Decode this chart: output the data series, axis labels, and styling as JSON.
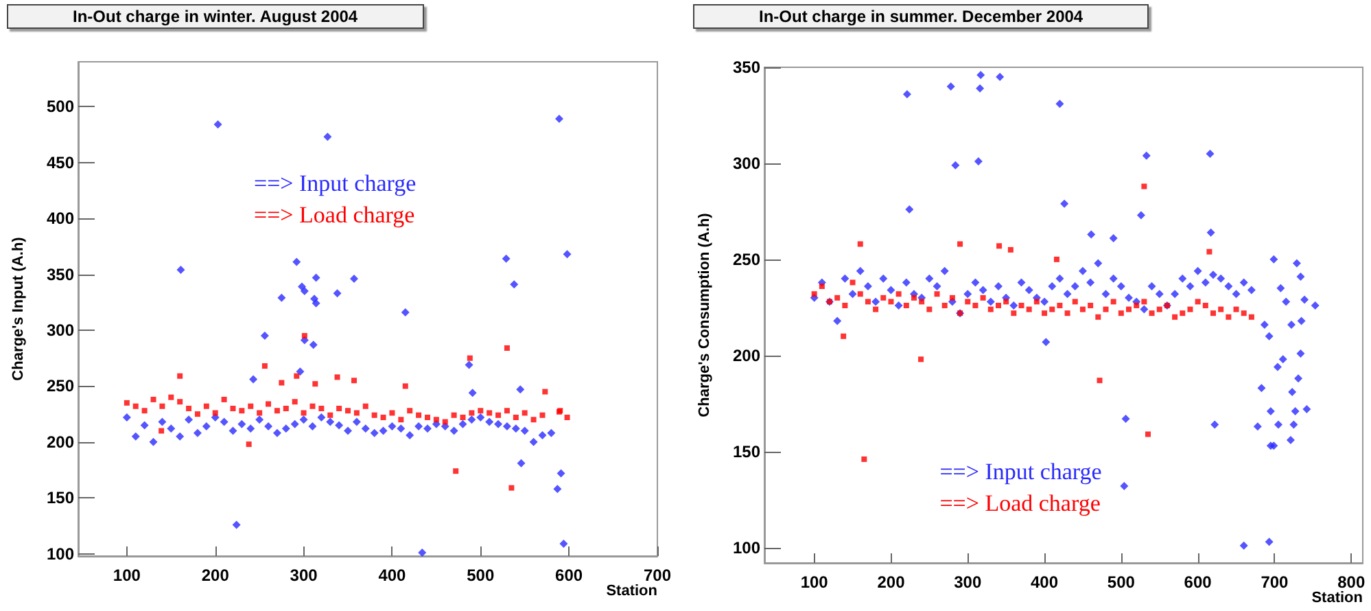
{
  "chart_data": [
    {
      "type": "scatter",
      "title": "In-Out charge in winter. August 2004",
      "xlabel": "Station",
      "ylabel": "Charge's Input (A.h)",
      "xlim": [
        45,
        700
      ],
      "ylim": [
        98,
        540
      ],
      "xticks": [
        100,
        200,
        300,
        400,
        500,
        600,
        700
      ],
      "yticks": [
        100,
        150,
        200,
        250,
        300,
        350,
        400,
        450,
        500
      ],
      "grid": false,
      "legend": "top",
      "series": [
        {
          "name": "==> Input charge",
          "color": "#2a2aff",
          "marker": "diamond",
          "x": [
            100,
            110,
            120,
            130,
            140,
            150,
            160,
            170,
            180,
            190,
            200,
            210,
            220,
            230,
            240,
            250,
            260,
            270,
            280,
            290,
            300,
            310,
            320,
            330,
            340,
            350,
            360,
            370,
            380,
            390,
            400,
            410,
            420,
            430,
            440,
            450,
            460,
            470,
            480,
            490,
            500,
            510,
            520,
            530,
            540,
            550,
            560,
            570,
            580,
            203,
            327,
            589,
            161,
            292,
            275,
            298,
            301,
            314,
            312,
            314,
            338,
            357,
            256,
            301,
            311,
            296,
            415,
            529,
            538,
            598,
            487,
            491,
            545,
            243,
            224,
            434,
            546,
            591,
            587,
            594
          ],
          "values": [
            222,
            205,
            215,
            200,
            218,
            212,
            205,
            220,
            208,
            214,
            222,
            218,
            210,
            216,
            212,
            220,
            214,
            208,
            212,
            216,
            220,
            214,
            222,
            218,
            215,
            210,
            218,
            212,
            208,
            210,
            214,
            212,
            206,
            214,
            212,
            216,
            214,
            210,
            216,
            220,
            222,
            218,
            216,
            214,
            212,
            210,
            200,
            206,
            208,
            484,
            473,
            489,
            354,
            361,
            329,
            339,
            335,
            347,
            328,
            324,
            333,
            346,
            295,
            291,
            287,
            263,
            316,
            364,
            341,
            368,
            269,
            244,
            247,
            256,
            126,
            101,
            181,
            172,
            158,
            109
          ]
        },
        {
          "name": "==> Load charge",
          "color": "#ff0000",
          "marker": "square",
          "x": [
            100,
            110,
            120,
            130,
            140,
            150,
            160,
            170,
            180,
            190,
            200,
            210,
            220,
            230,
            240,
            250,
            260,
            270,
            280,
            290,
            300,
            310,
            320,
            330,
            340,
            350,
            360,
            370,
            380,
            390,
            400,
            410,
            420,
            430,
            440,
            450,
            460,
            470,
            480,
            490,
            500,
            510,
            520,
            530,
            540,
            550,
            560,
            570,
            590,
            598,
            160,
            256,
            275,
            292,
            301,
            313,
            338,
            357,
            415,
            488,
            530,
            472,
            535,
            238,
            139,
            573,
            589
          ],
          "values": [
            235,
            232,
            228,
            238,
            232,
            240,
            236,
            230,
            225,
            232,
            226,
            238,
            230,
            228,
            232,
            226,
            234,
            228,
            230,
            236,
            226,
            232,
            230,
            224,
            230,
            228,
            226,
            232,
            224,
            222,
            226,
            220,
            228,
            224,
            222,
            220,
            218,
            224,
            222,
            226,
            228,
            226,
            224,
            228,
            222,
            226,
            220,
            224,
            228,
            222,
            259,
            268,
            253,
            259,
            295,
            252,
            258,
            255,
            250,
            275,
            284,
            174,
            159,
            198,
            210,
            245,
            227
          ]
        }
      ]
    },
    {
      "type": "scatter",
      "title": "In-Out charge in summer. December 2004",
      "xlabel": "Station",
      "ylabel": "Charge's Consumption (A.h)",
      "xlim": [
        35,
        815
      ],
      "ylim": [
        92,
        350
      ],
      "xticks": [
        100,
        200,
        300,
        400,
        500,
        600,
        700,
        800
      ],
      "yticks": [
        100,
        150,
        200,
        250,
        300,
        350
      ],
      "grid": false,
      "legend": "bottom",
      "series": [
        {
          "name": "==> Input charge",
          "color": "#2a2aff",
          "marker": "diamond",
          "x": [
            100,
            110,
            120,
            130,
            140,
            150,
            160,
            170,
            180,
            190,
            200,
            210,
            220,
            230,
            240,
            250,
            260,
            270,
            280,
            290,
            300,
            310,
            320,
            330,
            340,
            350,
            360,
            370,
            380,
            390,
            400,
            410,
            420,
            430,
            440,
            450,
            460,
            470,
            480,
            490,
            500,
            510,
            520,
            530,
            540,
            550,
            560,
            570,
            580,
            590,
            600,
            610,
            620,
            630,
            640,
            650,
            660,
            670,
            221,
            278,
            317,
            316,
            342,
            420,
            284,
            314,
            224,
            426,
            533,
            616,
            526,
            506,
            504,
            622,
            660,
            693,
            461,
            490,
            617,
            402,
            683,
            678,
            695,
            695,
            699,
            705,
            704,
            711,
            699,
            708,
            687,
            693,
            721,
            723,
            725,
            727,
            731,
            734,
            729,
            734,
            735,
            739,
            742,
            753,
            715,
            722
          ],
          "values": [
            230,
            238,
            228,
            218,
            240,
            232,
            244,
            236,
            228,
            240,
            234,
            226,
            238,
            232,
            230,
            240,
            236,
            244,
            228,
            222,
            232,
            238,
            234,
            228,
            236,
            230,
            226,
            238,
            234,
            230,
            228,
            236,
            240,
            232,
            236,
            244,
            238,
            248,
            232,
            240,
            236,
            230,
            228,
            224,
            236,
            232,
            226,
            232,
            240,
            236,
            244,
            238,
            242,
            240,
            236,
            232,
            238,
            234,
            336,
            340,
            346,
            339,
            345,
            331,
            299,
            301,
            276,
            279,
            304,
            305,
            273,
            167,
            132,
            164,
            101,
            103,
            263,
            261,
            264,
            207,
            183,
            163,
            171,
            153,
            153,
            164,
            194,
            198,
            250,
            235,
            216,
            210,
            156,
            181,
            164,
            171,
            188,
            201,
            248,
            241,
            218,
            229,
            172,
            226,
            228,
            216
          ]
        },
        {
          "name": "==> Load charge",
          "color": "#ff0000",
          "marker": "square",
          "x": [
            100,
            110,
            120,
            130,
            140,
            150,
            160,
            170,
            180,
            190,
            200,
            210,
            220,
            230,
            240,
            250,
            260,
            270,
            280,
            290,
            300,
            310,
            320,
            330,
            340,
            350,
            360,
            370,
            380,
            390,
            400,
            410,
            420,
            430,
            440,
            450,
            460,
            470,
            480,
            490,
            500,
            510,
            520,
            530,
            540,
            550,
            560,
            570,
            580,
            590,
            600,
            610,
            620,
            630,
            640,
            650,
            660,
            670,
            530,
            535,
            472,
            239,
            165,
            160,
            290,
            341,
            356,
            416,
            615,
            138
          ],
          "values": [
            232,
            236,
            228,
            230,
            226,
            238,
            232,
            228,
            224,
            230,
            228,
            232,
            226,
            230,
            228,
            224,
            232,
            226,
            230,
            222,
            228,
            226,
            230,
            224,
            226,
            228,
            222,
            226,
            224,
            228,
            222,
            224,
            226,
            222,
            228,
            224,
            226,
            220,
            224,
            228,
            222,
            224,
            226,
            228,
            222,
            224,
            226,
            220,
            222,
            224,
            228,
            226,
            222,
            224,
            220,
            224,
            222,
            220,
            288,
            159,
            187,
            198,
            146,
            258,
            258,
            257,
            255,
            250,
            254,
            210
          ]
        }
      ]
    }
  ]
}
